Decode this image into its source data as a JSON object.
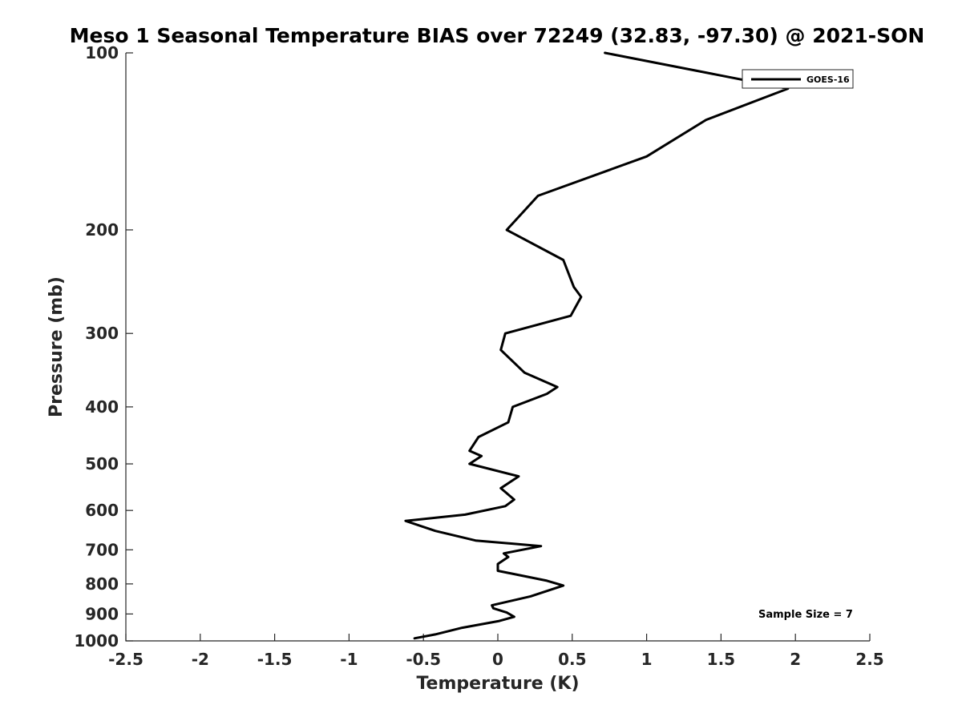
{
  "chart_data": {
    "type": "line",
    "title": "Meso 1 Seasonal Temperature BIAS over 72249 (32.83, -97.30) @ 2021-SON",
    "xlabel": "Temperature (K)",
    "ylabel": "Pressure (mb)",
    "xlim": [
      -2.5,
      2.5
    ],
    "ylim": [
      100,
      1000
    ],
    "yscale": "log",
    "y_reversed": true,
    "x_ticks": [
      -2.5,
      -2,
      -1.5,
      -1,
      -0.5,
      0,
      0.5,
      1,
      1.5,
      2,
      2.5
    ],
    "x_tick_labels": [
      "-2.5",
      "-2",
      "-1.5",
      "-1",
      "-0.5",
      "0",
      "0.5",
      "1",
      "1.5",
      "2",
      "2.5"
    ],
    "y_ticks": [
      100,
      200,
      300,
      400,
      500,
      600,
      700,
      800,
      900,
      1000
    ],
    "y_tick_labels": [
      "100",
      "200",
      "300",
      "400",
      "500",
      "600",
      "700",
      "800",
      "900",
      "1000"
    ],
    "grid": false,
    "legend_position": "top-right",
    "annotation": "Sample Size = 7",
    "colors": {
      "line": "#000000",
      "axis": "#262626"
    },
    "series": [
      {
        "name": "GOES-16",
        "points": [
          [
            0.72,
            100
          ],
          [
            1.95,
            115
          ],
          [
            1.4,
            130
          ],
          [
            1.0,
            150
          ],
          [
            0.27,
            175
          ],
          [
            0.06,
            200
          ],
          [
            0.44,
            225
          ],
          [
            0.51,
            250
          ],
          [
            0.56,
            260
          ],
          [
            0.49,
            280
          ],
          [
            0.05,
            300
          ],
          [
            0.02,
            320
          ],
          [
            0.18,
            350
          ],
          [
            0.4,
            370
          ],
          [
            0.33,
            380
          ],
          [
            0.1,
            400
          ],
          [
            0.07,
            425
          ],
          [
            -0.13,
            450
          ],
          [
            -0.19,
            475
          ],
          [
            -0.11,
            485
          ],
          [
            -0.19,
            500
          ],
          [
            0.14,
            525
          ],
          [
            0.02,
            550
          ],
          [
            0.11,
            575
          ],
          [
            0.05,
            590
          ],
          [
            -0.22,
            610
          ],
          [
            -0.62,
            625
          ],
          [
            -0.42,
            650
          ],
          [
            -0.15,
            675
          ],
          [
            0.29,
            690
          ],
          [
            0.04,
            710
          ],
          [
            0.07,
            720
          ],
          [
            0.0,
            740
          ],
          [
            0.0,
            760
          ],
          [
            0.33,
            790
          ],
          [
            0.44,
            805
          ],
          [
            0.22,
            840
          ],
          [
            -0.04,
            870
          ],
          [
            -0.03,
            880
          ],
          [
            0.06,
            895
          ],
          [
            0.11,
            910
          ],
          [
            0.01,
            925
          ],
          [
            -0.24,
            950
          ],
          [
            -0.42,
            975
          ],
          [
            -0.56,
            990
          ]
        ]
      }
    ]
  }
}
